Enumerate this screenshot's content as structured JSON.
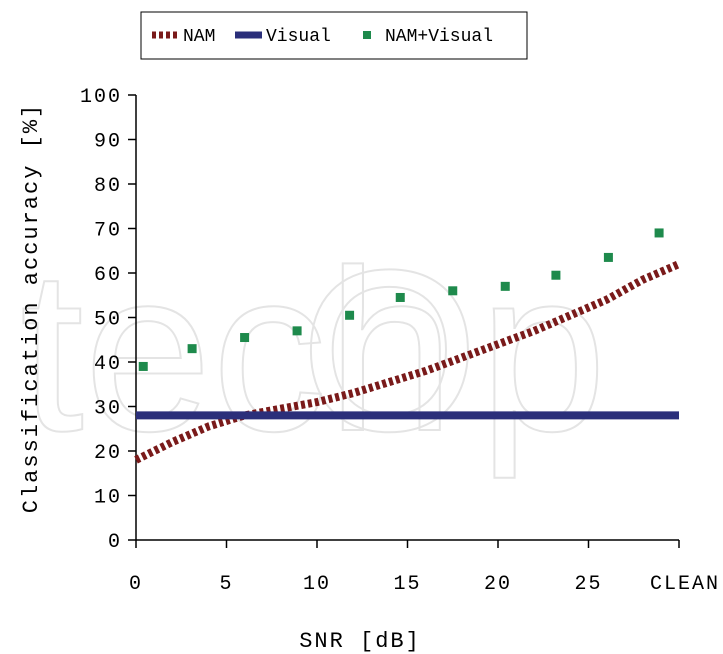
{
  "chart_data": {
    "type": "line",
    "xlabel": "SNR [dB]",
    "ylabel": "Classification accuracy [%]",
    "ylim": [
      0,
      100
    ],
    "xlim": [
      0,
      30
    ],
    "x_ticks": [
      "0",
      "5",
      "10",
      "15",
      "20",
      "25",
      "CLEAN"
    ],
    "y_ticks": [
      "0",
      "10",
      "20",
      "30",
      "40",
      "50",
      "60",
      "70",
      "80",
      "90",
      "100"
    ],
    "grid": false,
    "legend_position": "top",
    "series": [
      {
        "name": "NAM",
        "style": "dotted-thick",
        "color": "#7a1a1a",
        "x": [
          0,
          2,
          4,
          6,
          8,
          10,
          12,
          14,
          16,
          18,
          20,
          22,
          24,
          26,
          28,
          30
        ],
        "values": [
          18,
          22,
          25.5,
          28,
          29.5,
          31,
          33,
          35.5,
          38,
          41,
          44,
          47,
          50.5,
          54,
          58.5,
          62
        ]
      },
      {
        "name": "Visual",
        "style": "solid-thick",
        "color": "#2b2f7a",
        "x": [
          0,
          30
        ],
        "values": [
          28,
          28
        ]
      },
      {
        "name": "NAM+Visual",
        "style": "square-markers",
        "color": "#1e8a4c",
        "x": [
          0.4,
          3.1,
          6.0,
          8.9,
          11.8,
          14.6,
          17.5,
          20.4,
          23.2,
          26.1,
          28.9
        ],
        "values": [
          39,
          43,
          45.5,
          47,
          50.5,
          54.5,
          56,
          57,
          59.5,
          63.5,
          69
        ]
      }
    ]
  }
}
